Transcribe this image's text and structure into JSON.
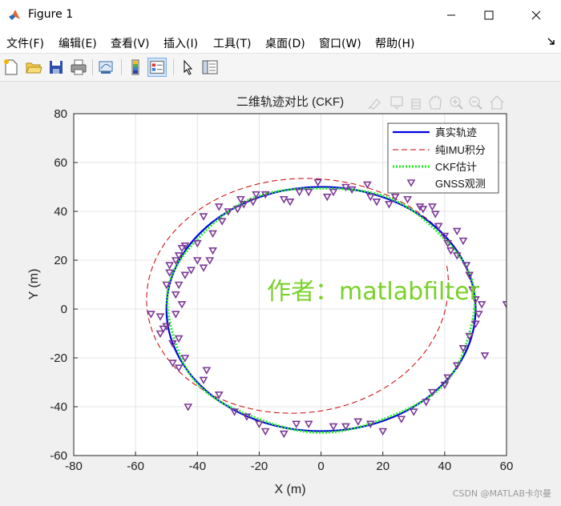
{
  "window": {
    "title": "Figure 1"
  },
  "menu": [
    "文件(F)",
    "编辑(E)",
    "查看(V)",
    "插入(I)",
    "工具(T)",
    "桌面(D)",
    "窗口(W)",
    "帮助(H)"
  ],
  "toolbar": {
    "icons": [
      "new-figure-icon",
      "open-file-icon",
      "save-icon",
      "print-icon",
      "link-plot-icon",
      "colorbar-icon",
      "legend-icon",
      "pointer-icon",
      "property-editor-icon"
    ]
  },
  "axes_toolbar": [
    "brush-icon",
    "data-tips-icon",
    "pan-icon",
    "zoom-in-icon",
    "zoom-out-icon",
    "home-icon"
  ],
  "chart_data": {
    "type": "line",
    "title": "二维轨迹对比 (CKF)",
    "xlabel": "X (m)",
    "ylabel": "Y (m)",
    "xlim": [
      -80,
      60
    ],
    "ylim": [
      -60,
      80
    ],
    "xticks": [
      -80,
      -60,
      -40,
      -20,
      0,
      20,
      40,
      60
    ],
    "yticks": [
      -60,
      -40,
      -20,
      0,
      20,
      40,
      60,
      80
    ],
    "grid": true,
    "legend_position": "top-right",
    "series": [
      {
        "name": "真实轨迹",
        "style": "solid",
        "color": "#0000e0",
        "shape": "circle",
        "center": [
          0,
          0
        ],
        "radius": [
          50,
          50
        ]
      },
      {
        "name": "纯IMU积分",
        "style": "dashed",
        "color": "#cc0000",
        "shape": "spiral",
        "center_start": [
          0,
          0
        ],
        "radius": [
          50,
          50
        ],
        "note_x_range": [
          -61,
          42
        ],
        "note_y_range": [
          -41,
          64
        ]
      },
      {
        "name": "CKF估计",
        "style": "dotted",
        "color": "#22ee22",
        "shape": "circle",
        "center": [
          0,
          0
        ],
        "radius": [
          49.6,
          50
        ]
      },
      {
        "name": "GNSS观测",
        "style": "markers",
        "color": "#7b3a96",
        "points": [
          [
            -52,
            -3
          ],
          [
            -51,
            -8
          ],
          [
            -50,
            -7
          ],
          [
            -52,
            -10
          ],
          [
            -55,
            -2
          ],
          [
            -50,
            10
          ],
          [
            -49,
            15
          ],
          [
            -47,
            20
          ],
          [
            -45,
            25
          ],
          [
            -49,
            18
          ],
          [
            -46,
            22
          ],
          [
            -44,
            26
          ],
          [
            -40,
            27
          ],
          [
            -35,
            31
          ],
          [
            -38,
            38
          ],
          [
            -33,
            42
          ],
          [
            -32,
            36
          ],
          [
            -30,
            40
          ],
          [
            -26,
            45
          ],
          [
            -27,
            41
          ],
          [
            -25,
            43
          ],
          [
            -21,
            47
          ],
          [
            -22,
            44
          ],
          [
            -18,
            47
          ],
          [
            -12,
            45
          ],
          [
            -10,
            44
          ],
          [
            -7,
            48
          ],
          [
            -4,
            48
          ],
          [
            -1,
            52
          ],
          [
            2,
            46
          ],
          [
            4,
            48
          ],
          [
            8,
            50
          ],
          [
            10,
            49
          ],
          [
            15,
            51
          ],
          [
            16,
            46
          ],
          [
            18,
            44
          ],
          [
            22,
            43
          ],
          [
            24,
            46
          ],
          [
            28,
            45
          ],
          [
            32,
            42
          ],
          [
            33,
            41
          ],
          [
            36,
            42
          ],
          [
            37,
            39
          ],
          [
            38,
            34
          ],
          [
            40,
            30
          ],
          [
            41,
            27
          ],
          [
            42,
            24
          ],
          [
            44,
            32
          ],
          [
            46,
            28
          ],
          [
            44,
            22
          ],
          [
            47,
            18
          ],
          [
            48,
            14
          ],
          [
            49,
            8
          ],
          [
            50,
            4
          ],
          [
            52,
            2
          ],
          [
            60,
            2
          ],
          [
            51,
            -2
          ],
          [
            50,
            -6
          ],
          [
            48,
            -11
          ],
          [
            46,
            -16
          ],
          [
            44,
            -23
          ],
          [
            41,
            -28
          ],
          [
            40,
            -31
          ],
          [
            53,
            -19
          ],
          [
            36,
            -34
          ],
          [
            34,
            -38
          ],
          [
            30,
            -42
          ],
          [
            26,
            -45
          ],
          [
            20,
            -50
          ],
          [
            16,
            -47
          ],
          [
            12,
            -46
          ],
          [
            8,
            -48
          ],
          [
            4,
            -48
          ],
          [
            -4,
            -47
          ],
          [
            -8,
            -47
          ],
          [
            -12,
            -51
          ],
          [
            -18,
            -50
          ],
          [
            -20,
            -47
          ],
          [
            -24,
            -44
          ],
          [
            -28,
            -42
          ],
          [
            -33,
            -35
          ],
          [
            -38,
            -29
          ],
          [
            -43,
            -40
          ],
          [
            -37,
            -25
          ],
          [
            -44,
            -20
          ],
          [
            -46,
            -24
          ],
          [
            -48,
            -22
          ],
          [
            -48,
            -14
          ],
          [
            -46,
            -12
          ],
          [
            -47,
            -2
          ],
          [
            -45,
            2
          ],
          [
            -47,
            6
          ],
          [
            -46,
            10
          ],
          [
            -44,
            14
          ],
          [
            -42,
            16
          ],
          [
            -40,
            20
          ],
          [
            -38,
            17
          ],
          [
            -36,
            20
          ],
          [
            -35,
            24
          ]
        ]
      }
    ]
  },
  "watermark": "作者：matlabfilter",
  "source_credit": "CSDN @MATLAB卡尔曼"
}
